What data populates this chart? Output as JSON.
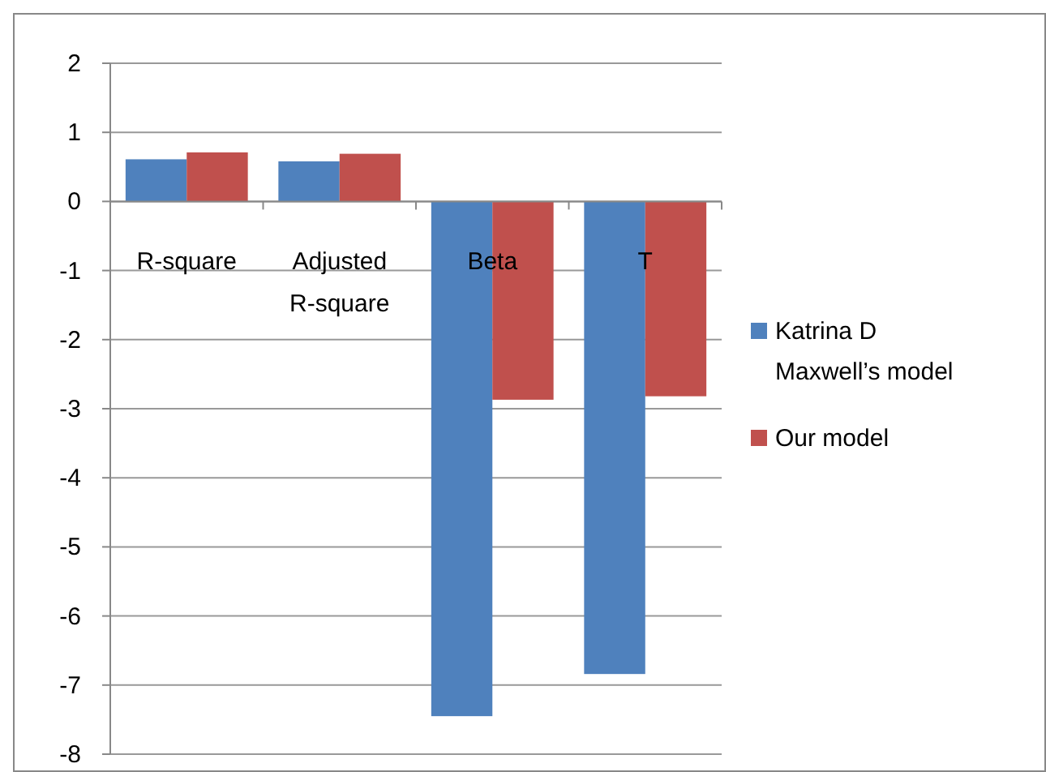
{
  "chart_data": {
    "type": "bar",
    "categories": [
      "R-square",
      "Adjusted R-square",
      "Beta",
      "T"
    ],
    "series": [
      {
        "name": "Katrina D Maxwell’s model",
        "color": "#4f81bd",
        "values": [
          0.61,
          0.58,
          -7.45,
          -6.84
        ]
      },
      {
        "name": "Our model",
        "color": "#c0504d",
        "values": [
          0.71,
          0.69,
          -2.87,
          -2.82
        ]
      }
    ],
    "ylim": [
      -8,
      2
    ],
    "yticks": [
      -8,
      -7,
      -6,
      -5,
      -4,
      -3,
      -2,
      -1,
      0,
      1,
      2
    ],
    "grid": "y",
    "legend": "right"
  }
}
